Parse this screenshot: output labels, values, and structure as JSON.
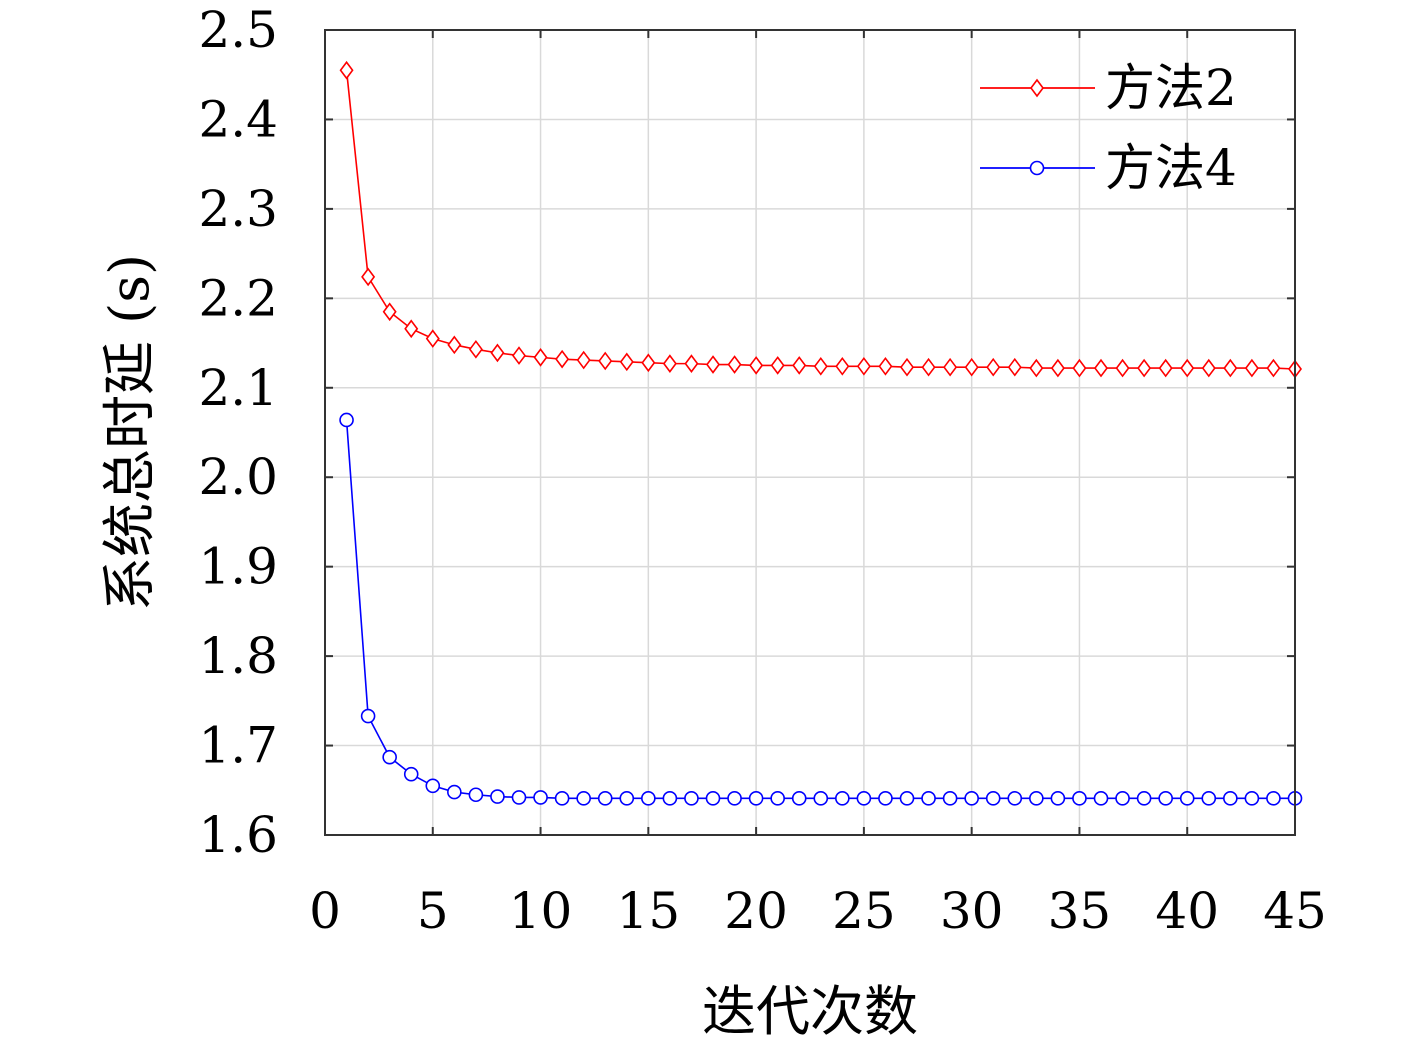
{
  "chart_data": {
    "type": "line",
    "title": "",
    "xlabel": "迭代次数",
    "ylabel": "系统总时延 (s)",
    "xlim": [
      0,
      45
    ],
    "ylim": [
      1.6,
      2.5
    ],
    "xticks": [
      "0",
      "5",
      "10",
      "15",
      "20",
      "25",
      "30",
      "35",
      "40",
      "45"
    ],
    "yticks": [
      "1.6",
      "1.7",
      "1.8",
      "1.9",
      "2.0",
      "2.1",
      "2.2",
      "2.3",
      "2.4",
      "2.5"
    ],
    "grid": true,
    "legend_position": "top-right",
    "x": [
      1,
      2,
      3,
      4,
      5,
      6,
      7,
      8,
      9,
      10,
      11,
      12,
      13,
      14,
      15,
      16,
      17,
      18,
      19,
      20,
      21,
      22,
      23,
      24,
      25,
      26,
      27,
      28,
      29,
      30,
      31,
      32,
      33,
      34,
      35,
      36,
      37,
      38,
      39,
      40,
      41,
      42,
      43,
      44,
      45
    ],
    "series": [
      {
        "name": "方法2",
        "color": "#ff0000",
        "marker": "diamond",
        "values": [
          2.455,
          2.224,
          2.185,
          2.166,
          2.155,
          2.148,
          2.143,
          2.139,
          2.136,
          2.134,
          2.132,
          2.131,
          2.13,
          2.129,
          2.128,
          2.127,
          2.127,
          2.126,
          2.126,
          2.125,
          2.125,
          2.125,
          2.124,
          2.124,
          2.124,
          2.124,
          2.123,
          2.123,
          2.123,
          2.123,
          2.123,
          2.123,
          2.122,
          2.122,
          2.122,
          2.122,
          2.122,
          2.122,
          2.122,
          2.122,
          2.122,
          2.122,
          2.122,
          2.122,
          2.121
        ]
      },
      {
        "name": "方法4",
        "color": "#0000ff",
        "marker": "circle",
        "values": [
          2.064,
          1.733,
          1.687,
          1.668,
          1.655,
          1.648,
          1.645,
          1.643,
          1.642,
          1.642,
          1.641,
          1.641,
          1.641,
          1.641,
          1.641,
          1.641,
          1.641,
          1.641,
          1.641,
          1.641,
          1.641,
          1.641,
          1.641,
          1.641,
          1.641,
          1.641,
          1.641,
          1.641,
          1.641,
          1.641,
          1.641,
          1.641,
          1.641,
          1.641,
          1.641,
          1.641,
          1.641,
          1.641,
          1.641,
          1.641,
          1.641,
          1.641,
          1.641,
          1.641,
          1.641
        ]
      }
    ]
  }
}
